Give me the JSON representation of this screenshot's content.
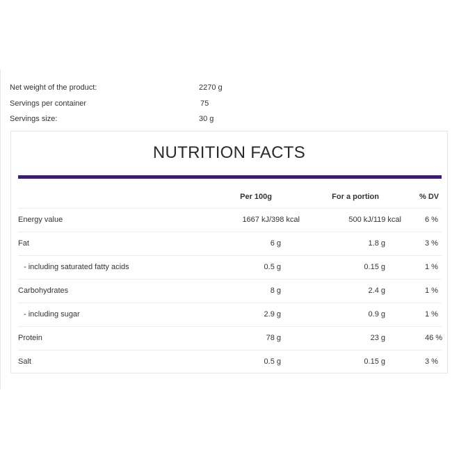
{
  "meta": {
    "net_weight_label": "Net weight of the product:",
    "net_weight_value": "2270 g",
    "servings_per_container_label": "Servings per container",
    "servings_per_container_value": "75",
    "servings_size_label": "Servings size:",
    "servings_size_value": "30 g"
  },
  "facts": {
    "title": "NUTRITION FACTS",
    "accent_color": "#3b1f6e",
    "columns": [
      "",
      "Per 100g",
      "For a portion",
      "% DV"
    ],
    "rows": [
      {
        "name": "Energy value",
        "per100": "1667 kJ/398 kcal",
        "portion": "500 kJ/119 kcal",
        "dv": "6 %"
      },
      {
        "name": "Fat",
        "per100": "6 g",
        "portion": "1.8 g",
        "dv": "3 %"
      },
      {
        "name": "- including saturated fatty acids",
        "per100": "0.5 g",
        "portion": "0.15 g",
        "dv": "1 %"
      },
      {
        "name": "Carbohydrates",
        "per100": "8 g",
        "portion": "2.4 g",
        "dv": "1 %"
      },
      {
        "name": "- including sugar",
        "per100": "2.9 g",
        "portion": "0.9 g",
        "dv": "1 %"
      },
      {
        "name": "Protein",
        "per100": "78 g",
        "portion": "23 g",
        "dv": "46 %"
      },
      {
        "name": "Salt",
        "per100": "0.5 g",
        "portion": "0.15 g",
        "dv": "3 %"
      }
    ]
  }
}
